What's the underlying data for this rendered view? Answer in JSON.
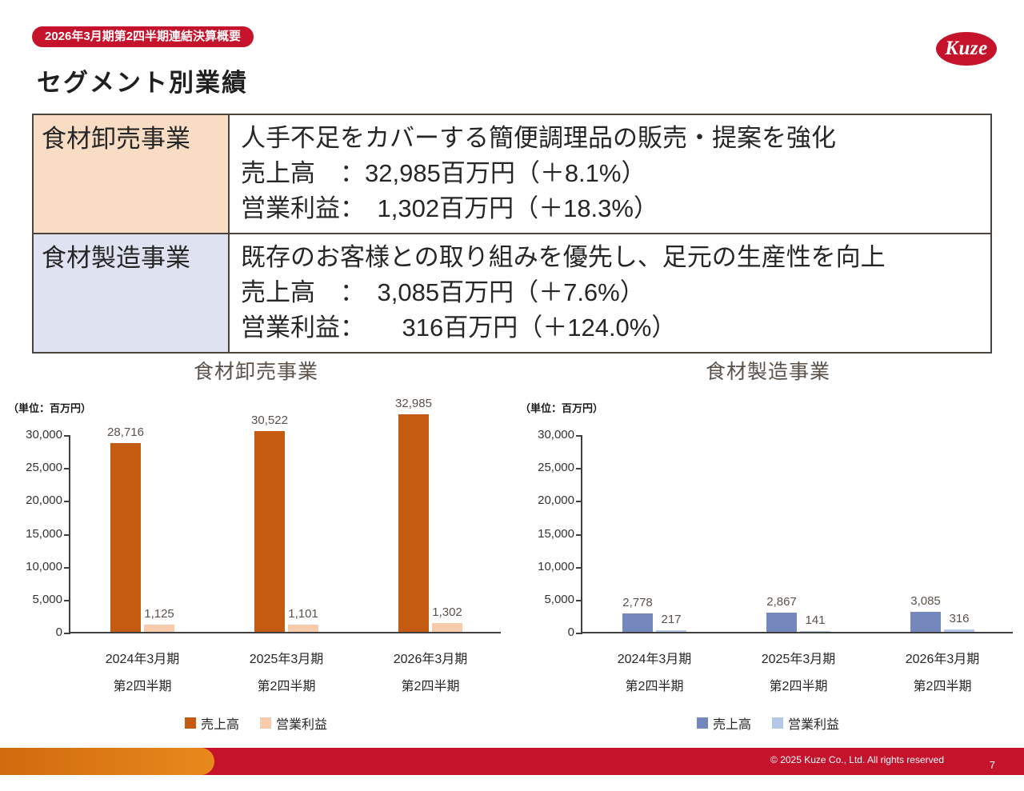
{
  "header": {
    "badge": "2026年3月期第2四半期連結決算概要",
    "logo_text": "Kuze",
    "title": "セグメント別業績"
  },
  "summary_table": {
    "rows": [
      {
        "segment": "食材卸売事業",
        "lines": [
          "人手不足をカバーする簡便調理品の販売・提案を強化",
          "売上高　：32,985百万円（＋8.1%）",
          "営業利益：　1,302百万円（＋18.3%）"
        ]
      },
      {
        "segment": "食材製造事業",
        "lines": [
          "既存のお客様との取り組みを優先し、足元の生産性を向上",
          "売上高　：　3,085百万円（＋7.6%）",
          "営業利益：　　316百万円（＋124.0%）"
        ]
      }
    ]
  },
  "chart_data": [
    {
      "type": "bar",
      "title": "食材卸売事業",
      "unit_label": "（単位：百万円）",
      "categories": [
        [
          "2024年3月期",
          "第2四半期"
        ],
        [
          "2025年3月期",
          "第2四半期"
        ],
        [
          "2026年3月期",
          "第2四半期"
        ]
      ],
      "series": [
        {
          "name": "売上高",
          "color": "#C55A11",
          "values": [
            28716,
            30522,
            32985
          ],
          "labels": [
            "28,716",
            "30,522",
            "32,985"
          ]
        },
        {
          "name": "営業利益",
          "color": "#F8CBAD",
          "values": [
            1125,
            1101,
            1302
          ],
          "labels": [
            "1,125",
            "1,101",
            "1,302"
          ]
        }
      ],
      "ylim": [
        0,
        30000
      ],
      "yticks": [
        "0",
        "5,000",
        "10,000",
        "15,000",
        "20,000",
        "25,000",
        "30,000"
      ],
      "grid": false,
      "legend_position": "bottom"
    },
    {
      "type": "bar",
      "title": "食材製造事業",
      "unit_label": "（単位：百万円）",
      "categories": [
        [
          "2024年3月期",
          "第2四半期"
        ],
        [
          "2025年3月期",
          "第2四半期"
        ],
        [
          "2026年3月期",
          "第2四半期"
        ]
      ],
      "series": [
        {
          "name": "売上高",
          "color": "#7487BC",
          "values": [
            2778,
            2867,
            3085
          ],
          "labels": [
            "2,778",
            "2,867",
            "3,085"
          ]
        },
        {
          "name": "営業利益",
          "color": "#B4C7E7",
          "values": [
            217,
            141,
            316
          ],
          "labels": [
            "217",
            "141",
            "316"
          ]
        }
      ],
      "ylim": [
        0,
        30000
      ],
      "yticks": [
        "0",
        "5,000",
        "10,000",
        "15,000",
        "20,000",
        "25,000",
        "30,000"
      ],
      "grid": false,
      "legend_position": "bottom"
    }
  ],
  "footer": {
    "copyright": "© 2025 Kuze Co., Ltd. All rights reserved",
    "page_number": "7"
  }
}
